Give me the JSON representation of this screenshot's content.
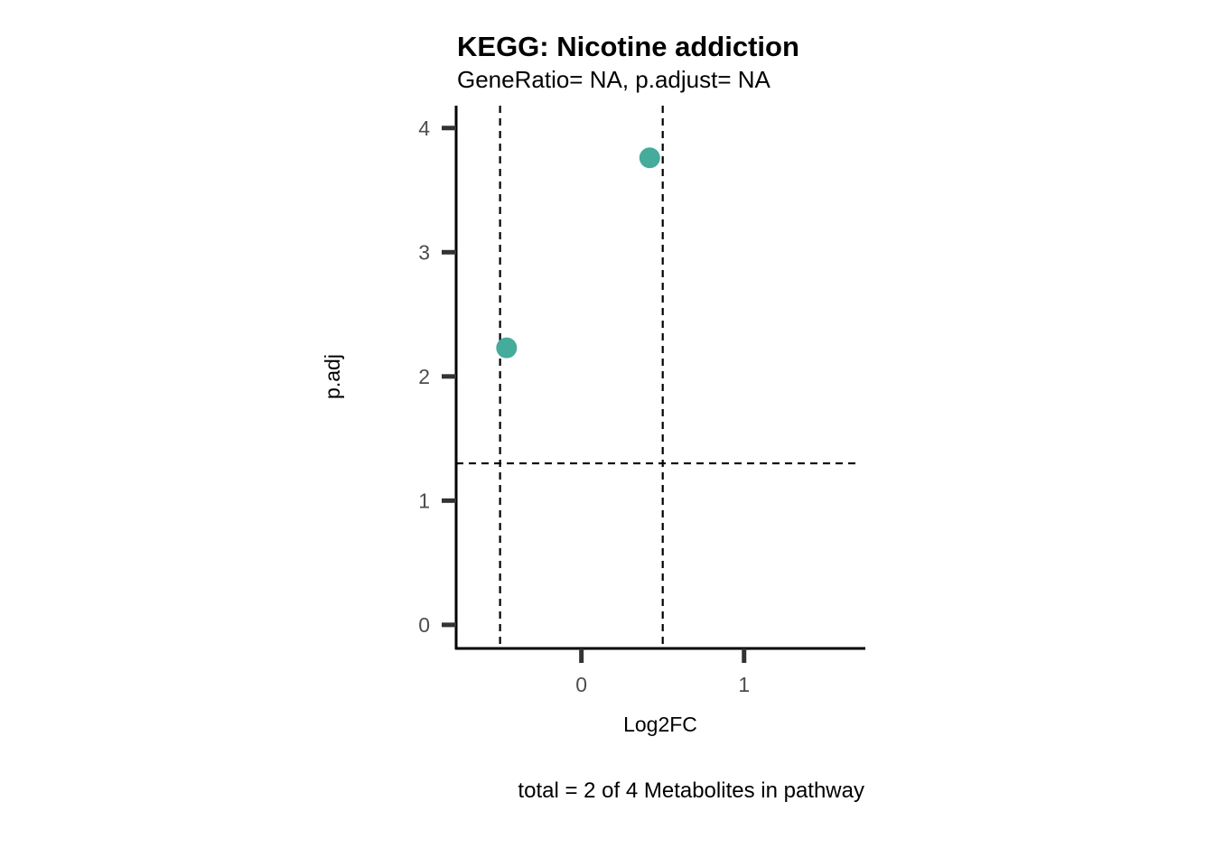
{
  "chart_data": {
    "type": "scatter",
    "title": "KEGG: Nicotine addiction",
    "subtitle": "GeneRatio= NA, p.adjust= NA",
    "xlabel": "Log2FC",
    "ylabel": "p.adj",
    "caption": "total = 2 of 4 Metabolites in pathway",
    "xlim": [
      -0.77,
      1.74
    ],
    "ylim": [
      -0.19,
      4.18
    ],
    "xticks": [
      0,
      1
    ],
    "yticks": [
      0,
      1,
      2,
      3,
      4
    ],
    "grid": false,
    "legend": "none",
    "points": [
      {
        "x": -0.46,
        "y": 2.23
      },
      {
        "x": 0.42,
        "y": 3.76
      }
    ],
    "reference_lines": {
      "vertical": [
        -0.5,
        0.5
      ],
      "horizontal": [
        1.3
      ]
    },
    "point_color": "#45AB9B",
    "line_color": "#000000"
  }
}
